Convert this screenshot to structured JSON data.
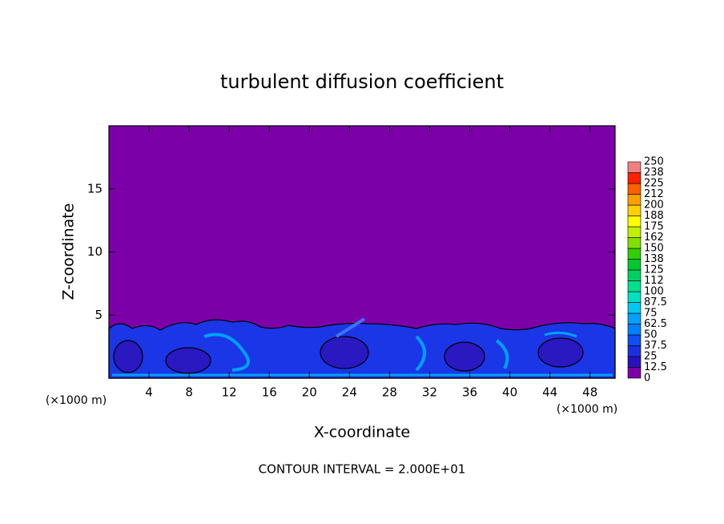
{
  "chart_data": {
    "type": "contour",
    "title": "turbulent diffusion coefficient",
    "xlabel": "X-coordinate",
    "ylabel": "Z-coordinate",
    "x_unit_labels": [
      "(×1000 m)",
      "(×1000 m)"
    ],
    "footnote": "CONTOUR INTERVAL = 2.000E+01",
    "xlim": [
      0,
      50.5
    ],
    "xticks": [
      4,
      8,
      12,
      16,
      20,
      24,
      28,
      32,
      36,
      40,
      44,
      48
    ],
    "ylim": [
      0,
      20
    ],
    "yticks": [
      5,
      10,
      15
    ],
    "background_color": "#7c00a8",
    "colorbar": {
      "levels": [
        0,
        12.5,
        25,
        37.5,
        50,
        62.5,
        75,
        87.5,
        100,
        112,
        125,
        138,
        150,
        162,
        175,
        188,
        200,
        212,
        225,
        238,
        250
      ],
      "colors": [
        "#7c00a8",
        "#2a10c0",
        "#1a30e0",
        "#1050f0",
        "#0080ff",
        "#00a0ff",
        "#00c8f0",
        "#00e0c0",
        "#00e090",
        "#00d060",
        "#00c830",
        "#30d000",
        "#80e000",
        "#c0f000",
        "#ffff00",
        "#ffd000",
        "#ffa000",
        "#ff6000",
        "#ff2000",
        "#f08080"
      ]
    }
  }
}
